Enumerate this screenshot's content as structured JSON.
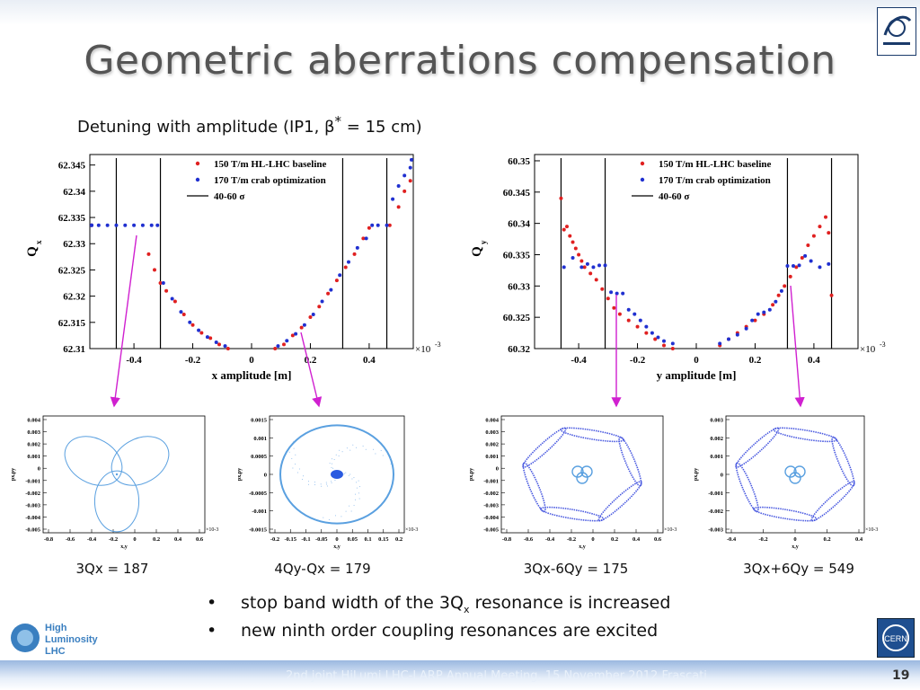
{
  "slide": {
    "title": "Geometric aberrations compensation",
    "subtitle_pre": "Detuning with amplitude (IP1, ",
    "subtitle_beta": "β",
    "subtitle_star": "*",
    "subtitle_post": " = 15 cm)",
    "footer": "2nd joint HiLumi LHC-LARP Annual Meeting, 15 November 2012 Frascati",
    "page_number": "19",
    "logo_hl": [
      "High",
      "Luminosity",
      "LHC"
    ],
    "logo_cern": "CERN"
  },
  "bullets": [
    {
      "pre": "stop band width of the 3Q",
      "sub": "x",
      "post": " resonance is increased"
    },
    {
      "pre": "new ninth order coupling resonances are excited",
      "sub": "",
      "post": ""
    }
  ],
  "captions": [
    "3Qx = 187",
    "4Qy-Qx = 179",
    "3Qx-6Qy = 175",
    "3Qx+6Qy = 549"
  ],
  "chart_data": [
    {
      "type": "scatter",
      "ylabel": "Q",
      "ylabel_sub": "x",
      "xlabel": "x amplitude [m]",
      "x_multiplier": "×10",
      "x_multiplier_exp": "-3",
      "xlim": [
        -0.55,
        0.55
      ],
      "ylim": [
        62.31,
        62.347
      ],
      "xticks": [
        "-0.4",
        "-0.2",
        "0",
        "0.2",
        "0.4"
      ],
      "yticks": [
        "62.31",
        "62.315",
        "62.32",
        "62.325",
        "62.33",
        "62.335",
        "62.34",
        "62.345"
      ],
      "legend": [
        {
          "label": "150 T/m HL-LHC baseline",
          "color": "#e02020"
        },
        {
          "label": "170 T/m crab optimization",
          "color": "#2030d0"
        },
        {
          "label": "40-60 σ",
          "color": "#000000"
        }
      ],
      "vlines": [
        -0.46,
        -0.31,
        0.31,
        0.46
      ],
      "series": [
        {
          "name": "150 T/m HL-LHC baseline",
          "color": "#e02020",
          "x": [
            -0.57,
            -0.35,
            -0.33,
            -0.31,
            -0.29,
            -0.26,
            -0.23,
            -0.2,
            -0.17,
            -0.14,
            -0.11,
            -0.08,
            0.08,
            0.11,
            0.14,
            0.17,
            0.2,
            0.23,
            0.26,
            0.29,
            0.32,
            0.35,
            0.38,
            0.4,
            0.47,
            0.5,
            0.52,
            0.54
          ],
          "y": [
            62.3335,
            62.328,
            62.325,
            62.3225,
            62.321,
            62.319,
            62.3165,
            62.3145,
            62.313,
            62.312,
            62.3108,
            62.31,
            62.31,
            62.3108,
            62.3125,
            62.314,
            62.316,
            62.318,
            62.3205,
            62.323,
            62.3255,
            62.328,
            62.331,
            62.333,
            62.3335,
            62.337,
            62.34,
            62.342
          ]
        },
        {
          "name": "170 T/m crab optimization",
          "color": "#2030d0",
          "x": [
            -0.57,
            -0.55,
            -0.52,
            -0.49,
            -0.46,
            -0.43,
            -0.4,
            -0.37,
            -0.34,
            -0.32,
            -0.3,
            -0.27,
            -0.24,
            -0.21,
            -0.18,
            -0.15,
            -0.12,
            -0.09,
            0.09,
            0.12,
            0.15,
            0.18,
            0.21,
            0.24,
            0.27,
            0.3,
            0.33,
            0.36,
            0.39,
            0.41,
            0.43,
            0.46,
            0.48,
            0.5,
            0.52,
            0.54,
            0.56
          ],
          "y": [
            62.3335,
            62.3335,
            62.3335,
            62.3335,
            62.3335,
            62.3335,
            62.3335,
            62.3335,
            62.3335,
            62.3335,
            62.3225,
            62.3195,
            62.317,
            62.315,
            62.3135,
            62.3122,
            62.3112,
            62.3105,
            62.3105,
            62.3115,
            62.3128,
            62.3145,
            62.3165,
            62.319,
            62.3212,
            62.324,
            62.3265,
            62.3292,
            62.331,
            62.3335,
            62.3335,
            62.3335,
            62.3385,
            62.341,
            62.343,
            62.3445,
            62.346
          ]
        }
      ]
    },
    {
      "type": "scatter",
      "ylabel": "Q",
      "ylabel_sub": "y",
      "xlabel": "y amplitude [m]",
      "x_multiplier": "×10",
      "x_multiplier_exp": "-3",
      "xlim": [
        -0.55,
        0.55
      ],
      "ylim": [
        60.32,
        60.351
      ],
      "xticks": [
        "-0.4",
        "-0.2",
        "0",
        "0.2",
        "0.4"
      ],
      "yticks": [
        "60.32",
        "60.325",
        "60.33",
        "60.335",
        "60.34",
        "60.345",
        "60.35"
      ],
      "legend": [
        {
          "label": "150 T/m HL-LHC baseline",
          "color": "#e02020"
        },
        {
          "label": "170 T/m crab optimization",
          "color": "#2030d0"
        },
        {
          "label": "40-60 σ",
          "color": "#000000"
        }
      ],
      "vlines": [
        -0.46,
        -0.31,
        0.31,
        0.46
      ],
      "series": [
        {
          "name": "150 T/m HL-LHC baseline",
          "color": "#e02020",
          "x": [
            -0.46,
            -0.45,
            -0.44,
            -0.43,
            -0.42,
            -0.41,
            -0.4,
            -0.39,
            -0.38,
            -0.36,
            -0.34,
            -0.32,
            -0.3,
            -0.28,
            -0.26,
            -0.23,
            -0.2,
            -0.17,
            -0.14,
            -0.11,
            -0.08,
            0.08,
            0.11,
            0.14,
            0.17,
            0.2,
            0.23,
            0.26,
            0.28,
            0.3,
            0.32,
            0.34,
            0.36,
            0.38,
            0.4,
            0.42,
            0.44,
            0.45,
            0.46
          ],
          "y": [
            60.344,
            60.339,
            60.3395,
            60.338,
            60.337,
            60.336,
            60.335,
            60.334,
            60.333,
            60.332,
            60.331,
            60.3295,
            60.328,
            60.3265,
            60.3255,
            60.3245,
            60.3235,
            60.3225,
            60.3215,
            60.3205,
            60.32,
            60.3205,
            60.3215,
            60.3225,
            60.3235,
            60.3245,
            60.3255,
            60.327,
            60.3285,
            60.33,
            60.3315,
            60.333,
            60.3345,
            60.3365,
            60.338,
            60.3395,
            60.341,
            60.3385,
            60.3285
          ]
        },
        {
          "name": "170 T/m crab optimization",
          "color": "#2030d0",
          "x": [
            -0.45,
            -0.42,
            -0.39,
            -0.37,
            -0.35,
            -0.33,
            -0.31,
            -0.29,
            -0.27,
            -0.25,
            -0.23,
            -0.21,
            -0.19,
            -0.17,
            -0.15,
            -0.13,
            -0.11,
            -0.08,
            0.08,
            0.11,
            0.14,
            0.17,
            0.19,
            0.21,
            0.23,
            0.25,
            0.27,
            0.29,
            0.31,
            0.33,
            0.35,
            0.37,
            0.39,
            0.42,
            0.45
          ],
          "y": [
            60.333,
            60.3345,
            60.333,
            60.3335,
            60.333,
            60.3333,
            60.3333,
            60.329,
            60.3288,
            60.3288,
            60.3262,
            60.3255,
            60.3245,
            60.3235,
            60.3225,
            60.3218,
            60.3212,
            60.3208,
            60.3208,
            60.3215,
            60.3222,
            60.3232,
            60.3245,
            60.3255,
            60.3258,
            60.3262,
            60.3275,
            60.3292,
            60.3332,
            60.3332,
            60.3333,
            60.3348,
            60.334,
            60.333,
            60.3335
          ]
        }
      ]
    },
    {
      "type": "scatter",
      "xlabel": "x,y",
      "ylabel": "px,py",
      "x_multiplier": "×10",
      "x_multiplier_exp": "-3",
      "xticks": [
        "-0.8",
        "-0.6",
        "-0.4",
        "-0.2",
        "0",
        "0.2",
        "0.4",
        "0.6"
      ],
      "yticks": [
        "0.004",
        "0.003",
        "0.002",
        "0.001",
        "0",
        "-0.001",
        "-0.002",
        "-0.003",
        "-0.004",
        "-0.005"
      ],
      "shape": "three-lobe island chain"
    },
    {
      "type": "scatter",
      "xlabel": "x,y",
      "ylabel": "px,py",
      "x_multiplier": "×10",
      "x_multiplier_exp": "-3",
      "xticks": [
        "-0.2",
        "-0.15",
        "-0.1",
        "-0.05",
        "0",
        "0.05",
        "0.1",
        "0.15",
        "0.2"
      ],
      "yticks": [
        "0.0015",
        "0.001",
        "0.0005",
        "0",
        "-0.0005",
        "-0.001",
        "-0.0015"
      ],
      "shape": "closed ring with central core"
    },
    {
      "type": "scatter",
      "xlabel": "x,y",
      "ylabel": "px,py",
      "x_multiplier": "×10",
      "x_multiplier_exp": "-3",
      "xticks": [
        "-0.8",
        "-0.6",
        "-0.4",
        "-0.2",
        "0",
        "0.2",
        "0.4",
        "0.6"
      ],
      "yticks": [
        "0.004",
        "0.003",
        "0.002",
        "0.001",
        "0",
        "-0.001",
        "-0.002",
        "-0.003",
        "-0.004",
        "-0.005"
      ],
      "shape": "hexagonal island chain"
    },
    {
      "type": "scatter",
      "xlabel": "x,y",
      "ylabel": "px,py",
      "x_multiplier": "×10",
      "x_multiplier_exp": "-3",
      "xticks": [
        "-0.4",
        "-0.2",
        "0",
        "0.2",
        "0.4"
      ],
      "yticks": [
        "0.003",
        "0.002",
        "0.001",
        "0",
        "-0.001",
        "-0.002",
        "-0.003"
      ],
      "shape": "hexagonal island chain"
    }
  ]
}
